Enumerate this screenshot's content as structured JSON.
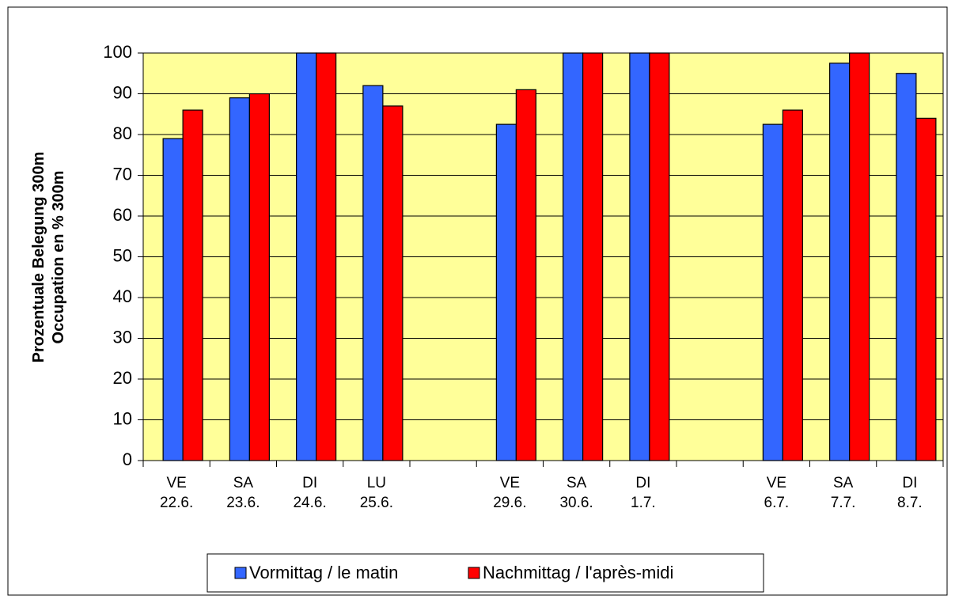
{
  "chart_data": {
    "type": "bar",
    "ylabel": [
      "Prozentuale Belegung 300m",
      "Occupation en % 300m"
    ],
    "categories": [
      [
        "VE",
        "22.6."
      ],
      [
        "SA",
        "23.6."
      ],
      [
        "DI",
        "24.6."
      ],
      [
        "LU",
        "25.6."
      ],
      null,
      [
        "VE",
        "29.6."
      ],
      [
        "SA",
        "30.6."
      ],
      [
        "DI",
        "1.7."
      ],
      null,
      [
        "VE",
        "6.7."
      ],
      [
        "SA",
        "7.7."
      ],
      [
        "DI",
        "8.7."
      ]
    ],
    "series": [
      {
        "name": "Vormittag / le matin",
        "color": "#3366ff",
        "values": [
          79,
          89,
          100,
          92,
          null,
          82.5,
          100,
          100,
          null,
          82.5,
          97.5,
          95
        ]
      },
      {
        "name": "Nachmittag / l'après-midi",
        "color": "#ff0000",
        "values": [
          86,
          90,
          100,
          87,
          null,
          91,
          100,
          100,
          null,
          86,
          100,
          84
        ]
      }
    ],
    "ylim": [
      0,
      100
    ],
    "yticks": [
      0,
      10,
      20,
      30,
      40,
      50,
      60,
      70,
      80,
      90,
      100
    ],
    "grid": true,
    "background": "#ffff99"
  }
}
